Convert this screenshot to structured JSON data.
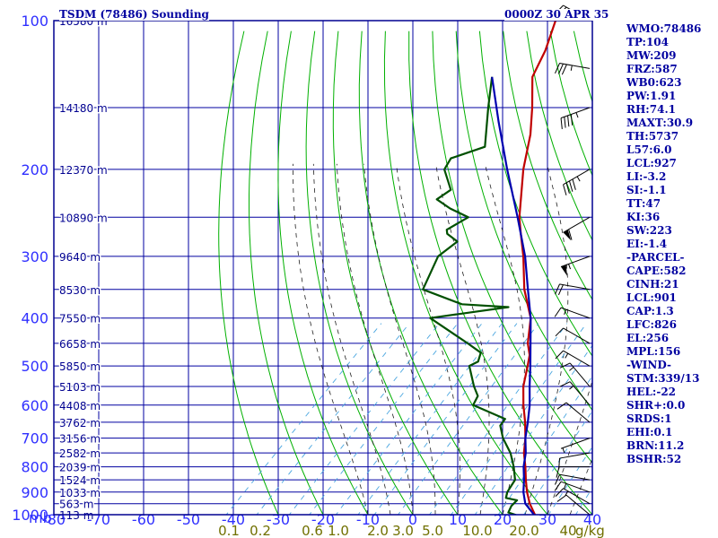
{
  "header": {
    "title": "TSDM (78486) Sounding",
    "datetime": "0000Z 30 APR 35"
  },
  "indices": [
    "WMO:78486",
    "TP:104",
    "MW:209",
    "FRZ:587",
    "WB0:623",
    "PW:1.91",
    "RH:74.1",
    "MAXT:30.9",
    "TH:5737",
    "L57:6.0",
    "LCL:927",
    "LI:-3.2",
    "SI:-1.1",
    "TT:47",
    "KI:36",
    "SW:223",
    "EI:-1.4",
    "-PARCEL-",
    "CAPE:582",
    "CINH:21",
    "LCL:901",
    "CAP:1.3",
    "LFC:826",
    "EL:256",
    "MPL:156",
    "-WIND-",
    "STM:339/13",
    "HEL:-22",
    "SHR+:0.0",
    "SRDS:1",
    "EHI:0.1",
    "BRN:11.2",
    "BSHR:52"
  ],
  "colors": {
    "frame": "#000090",
    "grid": "#0000a0",
    "dry_adiabat": "#00b000",
    "moist_adiabat": "#202020",
    "mixing_ratio": "#4aa6e0",
    "temperature": "#c00000",
    "dewpoint": "#005000",
    "parcel": "#0000b0",
    "axis_label": "#3030ff",
    "mixing_label": "#707000"
  },
  "chart_data": {
    "type": "line",
    "chart_kind": "skew-T log-P sounding",
    "y_unit": "mb",
    "x_unit": "",
    "xlim": [
      -80,
      0
    ],
    "ylim": [
      1000,
      100
    ],
    "x_ticks": [
      -80,
      -70,
      -60,
      -50,
      -40,
      -30,
      -20,
      -10,
      0,
      10,
      20,
      30,
      40
    ],
    "x_tick_labels": [
      "-80",
      "-70",
      "-60",
      "-50",
      "-40",
      "-30",
      "-20",
      "-10",
      "0",
      "10",
      "20",
      "30",
      "40"
    ],
    "y_ticks": [
      100,
      200,
      300,
      400,
      500,
      600,
      700,
      800,
      900,
      1000
    ],
    "y_tick_labels": [
      "100",
      "200",
      "300",
      "400",
      "500",
      "600",
      "700",
      "800",
      "900",
      "1000"
    ],
    "heights": [
      {
        "p": 100,
        "label": "16580 m"
      },
      {
        "p": 150,
        "label": "14180 m"
      },
      {
        "p": 200,
        "label": "12370 m"
      },
      {
        "p": 250,
        "label": "10890 m"
      },
      {
        "p": 300,
        "label": "9640 m"
      },
      {
        "p": 350,
        "label": "8530 m"
      },
      {
        "p": 400,
        "label": "7550 m"
      },
      {
        "p": 450,
        "label": "6658 m"
      },
      {
        "p": 500,
        "label": "5850 m"
      },
      {
        "p": 550,
        "label": "5103 m"
      },
      {
        "p": 600,
        "label": "4408 m"
      },
      {
        "p": 650,
        "label": "3762 m"
      },
      {
        "p": 700,
        "label": "3156 m"
      },
      {
        "p": 750,
        "label": "2582 m"
      },
      {
        "p": 800,
        "label": "2039 m"
      },
      {
        "p": 850,
        "label": "1524 m"
      },
      {
        "p": 900,
        "label": "1033 m"
      },
      {
        "p": 950,
        "label": "563 m"
      },
      {
        "p": 1000,
        "label": "113 m"
      }
    ],
    "mixing_ratio_labels": [
      {
        "w": 0.1,
        "label": "0.1"
      },
      {
        "w": 0.2,
        "label": "0.2"
      },
      {
        "w": 0.6,
        "label": "0.6"
      },
      {
        "w": 1.0,
        "label": "1.0"
      },
      {
        "w": 2.0,
        "label": "2.0"
      },
      {
        "w": 3.0,
        "label": "3.0"
      },
      {
        "w": 5.0,
        "label": "5.0"
      },
      {
        "w": 10.0,
        "label": "10.0"
      },
      {
        "w": 20.0,
        "label": "20.0"
      },
      {
        "w": 40.0,
        "label": "40"
      }
    ],
    "mixing_ratio_unit": "g/kg",
    "series": [
      {
        "key": "temperature",
        "points": [
          [
            1005,
            27.8
          ],
          [
            1000,
            27.2
          ],
          [
            950,
            23.6
          ],
          [
            900,
            20.4
          ],
          [
            850,
            17.4
          ],
          [
            800,
            14.4
          ],
          [
            750,
            11.0
          ],
          [
            700,
            8.0
          ],
          [
            650,
            4.4
          ],
          [
            600,
            0.2
          ],
          [
            550,
            -4.0
          ],
          [
            500,
            -7.6
          ],
          [
            475,
            -9.6
          ],
          [
            450,
            -12.6
          ],
          [
            400,
            -17.6
          ],
          [
            350,
            -25.4
          ],
          [
            300,
            -33.0
          ],
          [
            270,
            -38.6
          ],
          [
            250,
            -42.6
          ],
          [
            200,
            -52.4
          ],
          [
            170,
            -58.6
          ],
          [
            150,
            -64.2
          ],
          [
            130,
            -71.0
          ],
          [
            115,
            -74.0
          ],
          [
            100,
            -78.4
          ]
        ]
      },
      {
        "key": "dewpoint",
        "points": [
          [
            1005,
            23.6
          ],
          [
            1000,
            22.8
          ],
          [
            990,
            20.8
          ],
          [
            960,
            20.0
          ],
          [
            935,
            20.0
          ],
          [
            925,
            17.0
          ],
          [
            900,
            16.0
          ],
          [
            850,
            15.0
          ],
          [
            800,
            11.8
          ],
          [
            750,
            8.0
          ],
          [
            700,
            3.0
          ],
          [
            660,
            -0.4
          ],
          [
            640,
            -0.8
          ],
          [
            600,
            -11.0
          ],
          [
            575,
            -12.0
          ],
          [
            550,
            -15.0
          ],
          [
            500,
            -20.6
          ],
          [
            490,
            -19.6
          ],
          [
            470,
            -21.0
          ],
          [
            450,
            -26.0
          ],
          [
            400,
            -40.0
          ],
          [
            380,
            -25.0
          ],
          [
            375,
            -36.0
          ],
          [
            350,
            -48.0
          ],
          [
            300,
            -52.0
          ],
          [
            280,
            -51.0
          ],
          [
            270,
            -55.0
          ],
          [
            265,
            -56.0
          ],
          [
            250,
            -54.0
          ],
          [
            240,
            -60.0
          ],
          [
            230,
            -65.0
          ],
          [
            220,
            -64.0
          ],
          [
            200,
            -70.0
          ],
          [
            190,
            -71.0
          ],
          [
            180,
            -66.0
          ],
          [
            150,
            -74.0
          ],
          [
            130,
            -80.0
          ]
        ]
      },
      {
        "key": "parcel",
        "points": [
          [
            1000,
            27.0
          ],
          [
            950,
            22.6
          ],
          [
            900,
            19.6
          ],
          [
            850,
            17.0
          ],
          [
            800,
            14.0
          ],
          [
            750,
            11.4
          ],
          [
            700,
            8.0
          ],
          [
            650,
            5.0
          ],
          [
            600,
            1.6
          ],
          [
            550,
            -2.6
          ],
          [
            500,
            -7.0
          ],
          [
            450,
            -12.0
          ],
          [
            400,
            -17.6
          ],
          [
            350,
            -24.6
          ],
          [
            300,
            -32.6
          ],
          [
            250,
            -43.0
          ],
          [
            200,
            -56.0
          ],
          [
            160,
            -68.6
          ],
          [
            130,
            -80.0
          ]
        ]
      }
    ],
    "wind_barbs": [
      {
        "p": 1000,
        "dir": 310,
        "spd": 10
      },
      {
        "p": 950,
        "dir": 300,
        "spd": 15
      },
      {
        "p": 900,
        "dir": 290,
        "spd": 15
      },
      {
        "p": 850,
        "dir": 280,
        "spd": 10
      },
      {
        "p": 800,
        "dir": 270,
        "spd": 10
      },
      {
        "p": 750,
        "dir": 260,
        "spd": 10
      },
      {
        "p": 700,
        "dir": 250,
        "spd": 5
      },
      {
        "p": 650,
        "dir": 310,
        "spd": 10
      },
      {
        "p": 600,
        "dir": 320,
        "spd": 15
      },
      {
        "p": 550,
        "dir": 320,
        "spd": 15
      },
      {
        "p": 500,
        "dir": 300,
        "spd": 15
      },
      {
        "p": 450,
        "dir": 300,
        "spd": 10
      },
      {
        "p": 400,
        "dir": 290,
        "spd": 15
      },
      {
        "p": 350,
        "dir": 280,
        "spd": 20
      },
      {
        "p": 300,
        "dir": 250,
        "spd": 55
      },
      {
        "p": 250,
        "dir": 240,
        "spd": 60
      },
      {
        "p": 200,
        "dir": 240,
        "spd": 45
      },
      {
        "p": 150,
        "dir": 250,
        "spd": 45
      },
      {
        "p": 125,
        "dir": 280,
        "spd": 35
      },
      {
        "p": 100,
        "dir": 300,
        "spd": 20
      }
    ]
  }
}
